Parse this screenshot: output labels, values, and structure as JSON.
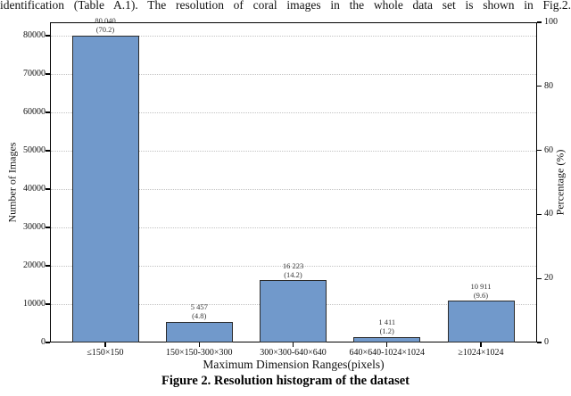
{
  "page": {
    "top_text": "identification (Table A.1). The resolution of coral images in the whole data set is shown in Fig.2.",
    "caption": "Figure 2. Resolution histogram of the dataset"
  },
  "chart_data": {
    "type": "bar",
    "title": "",
    "xlabel": "Maximum Dimension Ranges(pixels)",
    "ylabel_left": "Number of Images",
    "ylabel_right": "Percentage (%)",
    "categories": [
      "≤150×150",
      "150×150-300×300",
      "300×300-640×640",
      "640×640-1024×1024",
      "≥1024×1024"
    ],
    "values": [
      80040,
      5457,
      16223,
      1411,
      10911
    ],
    "percentages": [
      70.2,
      4.8,
      14.2,
      1.2,
      9.6
    ],
    "value_labels": [
      "80 040",
      "5 457",
      "16 223",
      "1 411",
      "10 911"
    ],
    "pct_labels": [
      "(70.2)",
      "(4.8)",
      "(14.2)",
      "(1.2)",
      "(9.6)"
    ],
    "left_ticks": [
      0,
      10000,
      20000,
      30000,
      40000,
      50000,
      60000,
      70000,
      80000
    ],
    "right_ticks": [
      0,
      20,
      40,
      60,
      80,
      100
    ],
    "ylim_left": [
      0,
      83500
    ],
    "ylim_right": [
      0,
      100
    ],
    "grid": "horizontal dotted lines at left-axis major ticks",
    "legend": "none",
    "bar_color": "#7199CB",
    "bar_edge_color": "#2b2b2b"
  }
}
